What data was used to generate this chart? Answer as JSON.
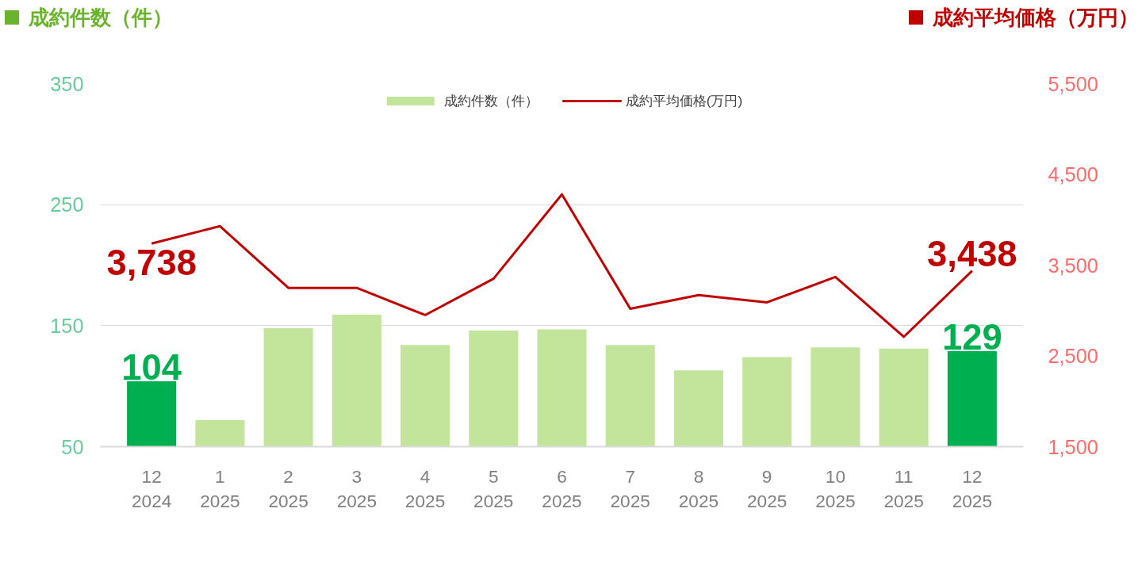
{
  "chart_data": {
    "type": "bar",
    "ylabel": "成約件数（件）",
    "y2label": "成約平均価格（万円）",
    "categories": [
      "12\n2024",
      "1\n2025",
      "2\n2025",
      "3\n2025",
      "4\n2025",
      "5\n2025",
      "6\n2025",
      "7\n2025",
      "8\n2025",
      "9\n2025",
      "10\n2025",
      "11\n2025",
      "12\n2025"
    ],
    "ylim": [
      50,
      350
    ],
    "yticks": [
      50,
      150,
      250,
      350
    ],
    "y2lim": [
      1500,
      5500
    ],
    "y2ticks": [
      {
        "value": 1500,
        "label": "1,500"
      },
      {
        "value": 2500,
        "label": "2,500"
      },
      {
        "value": 3500,
        "label": "3,500"
      },
      {
        "value": 4500,
        "label": "4,500"
      },
      {
        "value": 5500,
        "label": "5,500"
      }
    ],
    "series": [
      {
        "name": "成約件数（件）",
        "colors": [
          "#00b050",
          "#c3e59b",
          "#c3e59b",
          "#c3e59b",
          "#c3e59b",
          "#c3e59b",
          "#c3e59b",
          "#c3e59b",
          "#c3e59b",
          "#c3e59b",
          "#c3e59b",
          "#c3e59b",
          "#00b050"
        ],
        "color": "#c3e59b",
        "values": [
          104,
          72,
          148,
          159,
          134,
          146,
          147,
          134,
          113,
          124,
          132,
          131,
          129
        ],
        "value_labels": [
          "104",
          null,
          null,
          null,
          null,
          null,
          null,
          null,
          null,
          null,
          null,
          null,
          "129"
        ]
      },
      {
        "name": "成約平均価格(万円)",
        "type": "line",
        "axis": "y2",
        "color": "#c00000",
        "values": [
          3738,
          3930,
          3250,
          3250,
          2950,
          3350,
          4280,
          3020,
          3170,
          3090,
          3370,
          2710,
          3438
        ],
        "value_labels": [
          "3,738",
          null,
          null,
          null,
          null,
          null,
          null,
          null,
          null,
          null,
          null,
          null,
          "3,438"
        ]
      }
    ],
    "grid": "y",
    "legend": "top",
    "marker": "none"
  }
}
